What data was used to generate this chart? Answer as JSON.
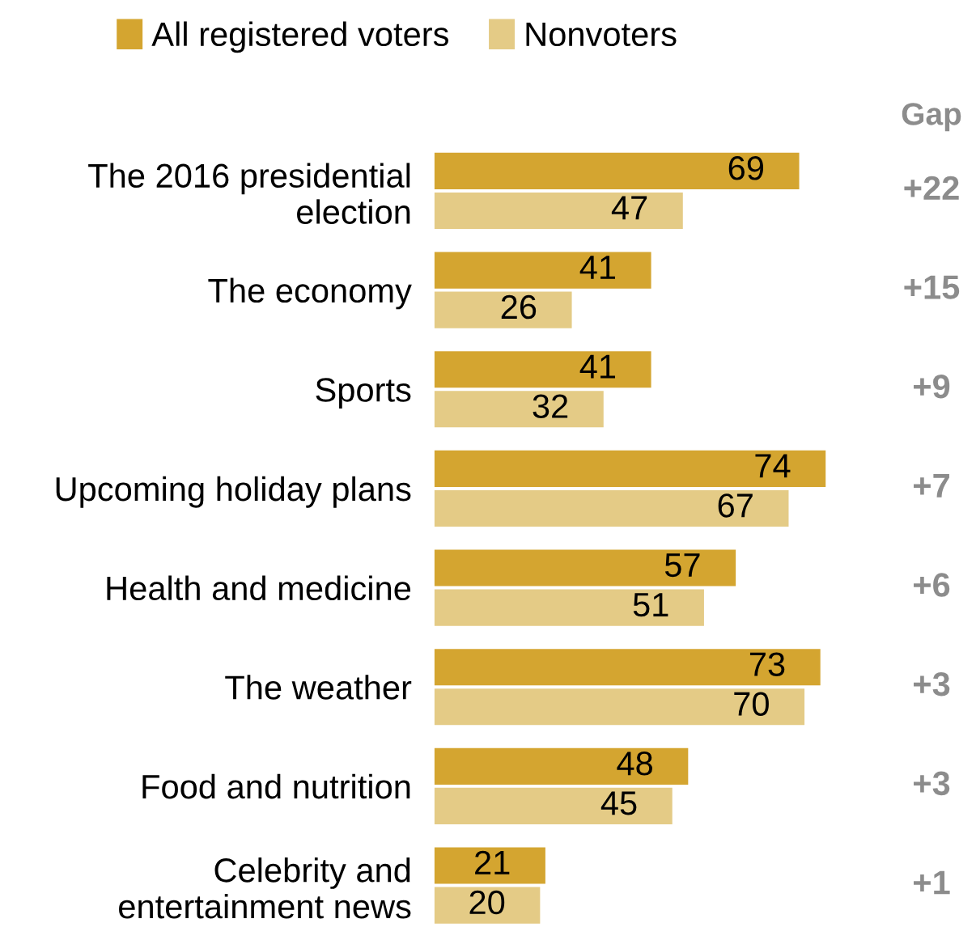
{
  "chart_data": {
    "type": "bar",
    "orientation": "horizontal",
    "categories": [
      "The 2016 presidential\nelection",
      "The economy",
      "Sports",
      "Upcoming holiday plans",
      "Health and medicine",
      "The weather",
      "Food and nutrition",
      "Celebrity and\nentertainment news"
    ],
    "series": [
      {
        "name": "All registered voters",
        "color": "#d4a530",
        "values": [
          69,
          41,
          41,
          74,
          57,
          73,
          48,
          21
        ]
      },
      {
        "name": "Nonvoters",
        "color": "#e4cb86",
        "values": [
          47,
          26,
          32,
          67,
          51,
          70,
          45,
          20
        ]
      }
    ],
    "data_labels": true,
    "legend": "top left",
    "grid": false,
    "annotations": [
      "Gap",
      "+22",
      "+15",
      "+9",
      "+7",
      "+6",
      "+3",
      "+3",
      "+1"
    ]
  }
}
